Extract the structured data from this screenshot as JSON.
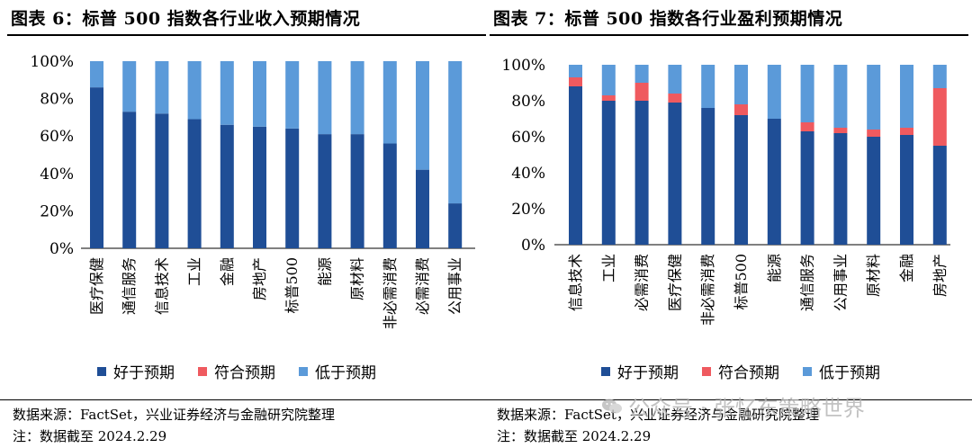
{
  "colors": {
    "good": "#1f4e96",
    "meet": "#ef5a5f",
    "low": "#5b9ad9"
  },
  "legend": [
    "好于预期",
    "符合预期",
    "低于预期"
  ],
  "footer": {
    "source_left": "数据来源：FactSet，兴业证券经济与金融研究院整理",
    "note_left": "注：数据截至 2024.2.29",
    "source_right": "数据来源：FactSet，兴业证券经济与金融研究院整理",
    "note_right": "注：数据截至 2024.2.29"
  },
  "watermark": {
    "text": "公众号 · 张忆东策略世界",
    "icon": "wechat-icon"
  },
  "chart_data": [
    {
      "type": "bar",
      "stacked": true,
      "title": "图表 6：标普 500 指数各行业收入预期情况",
      "categories": [
        "医疗保健",
        "通信服务",
        "信息技术",
        "工业",
        "金融",
        "房地产",
        "标普500",
        "能源",
        "原材料",
        "非必需消费",
        "必需消费",
        "公用事业"
      ],
      "series": [
        {
          "name": "好于预期",
          "values": [
            86,
            73,
            72,
            69,
            66,
            65,
            64,
            61,
            61,
            56,
            42,
            24
          ]
        },
        {
          "name": "符合预期",
          "values": [
            0,
            0,
            0,
            0,
            0,
            0,
            0,
            0,
            0,
            0,
            0,
            0
          ]
        },
        {
          "name": "低于预期",
          "values": [
            14,
            27,
            28,
            31,
            34,
            35,
            36,
            39,
            39,
            44,
            58,
            76
          ]
        }
      ],
      "yticks": [
        "0%",
        "20%",
        "40%",
        "60%",
        "80%",
        "100%"
      ],
      "ylim": [
        0,
        100
      ],
      "legend_position": "bottom"
    },
    {
      "type": "bar",
      "stacked": true,
      "title": "图表 7：标普 500 指数各行业盈利预期情况",
      "categories": [
        "信息技术",
        "工业",
        "必需消费",
        "医疗保健",
        "非必需消费",
        "标普500",
        "能源",
        "通信服务",
        "公用事业",
        "原材料",
        "金融",
        "房地产"
      ],
      "series": [
        {
          "name": "好于预期",
          "values": [
            88,
            80,
            80,
            79,
            76,
            72,
            70,
            63,
            62,
            60,
            61,
            55
          ]
        },
        {
          "name": "符合预期",
          "values": [
            5,
            3,
            10,
            5,
            0,
            6,
            0,
            5,
            3,
            4,
            4,
            32
          ]
        },
        {
          "name": "低于预期",
          "values": [
            7,
            17,
            10,
            16,
            24,
            22,
            30,
            32,
            35,
            36,
            35,
            13
          ]
        }
      ],
      "yticks": [
        "0%",
        "20%",
        "40%",
        "60%",
        "80%",
        "100%"
      ],
      "ylim": [
        0,
        100
      ],
      "legend_position": "bottom"
    }
  ]
}
